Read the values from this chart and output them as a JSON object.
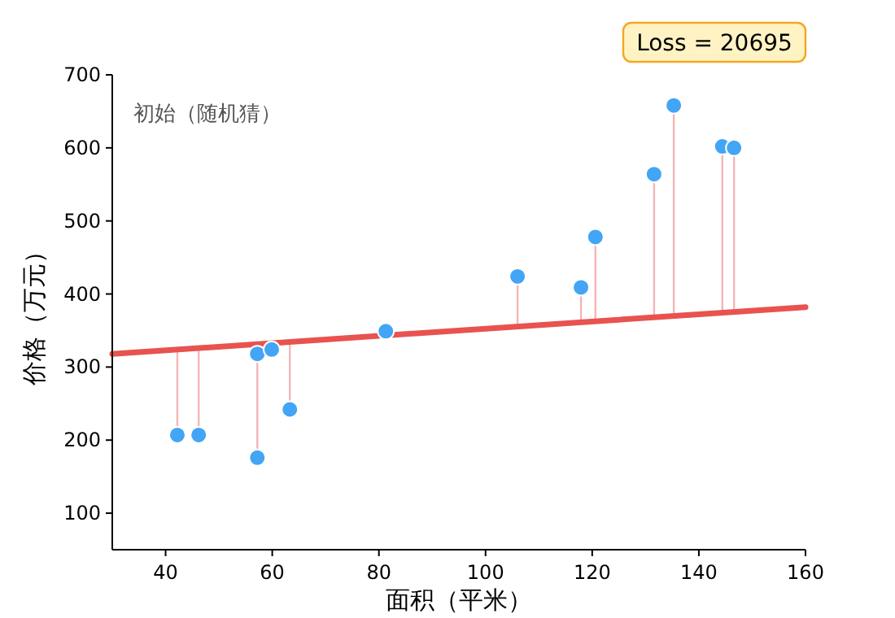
{
  "chart_data": {
    "type": "scatter",
    "xlabel": "面积（平米）",
    "ylabel": "价格（万元）",
    "annotations": [
      "初始（随机猜）",
      "Loss = 20695"
    ],
    "xlim": [
      30,
      160
    ],
    "xticks": [
      40,
      60,
      80,
      100,
      120,
      140,
      160
    ],
    "ylim": [
      50,
      700
    ],
    "yticks": [
      100,
      200,
      300,
      400,
      500,
      600,
      700
    ],
    "grid": false,
    "series": [
      {
        "type": "scatter",
        "color": "#42a5f5",
        "marker": "circle",
        "x": [
          42.2,
          46.2,
          57.2,
          59.9,
          57.2,
          63.3,
          81.3,
          106.0,
          117.9,
          120.6,
          131.6,
          135.3,
          144.4,
          146.6
        ],
        "values": [
          207,
          207,
          318,
          324,
          176,
          242,
          349,
          424,
          409,
          478,
          564,
          658,
          602,
          600
        ]
      },
      {
        "type": "line",
        "color": "#e8534f",
        "line_style": "solid",
        "x": [
          30,
          160
        ],
        "values": [
          318,
          382
        ]
      }
    ]
  }
}
